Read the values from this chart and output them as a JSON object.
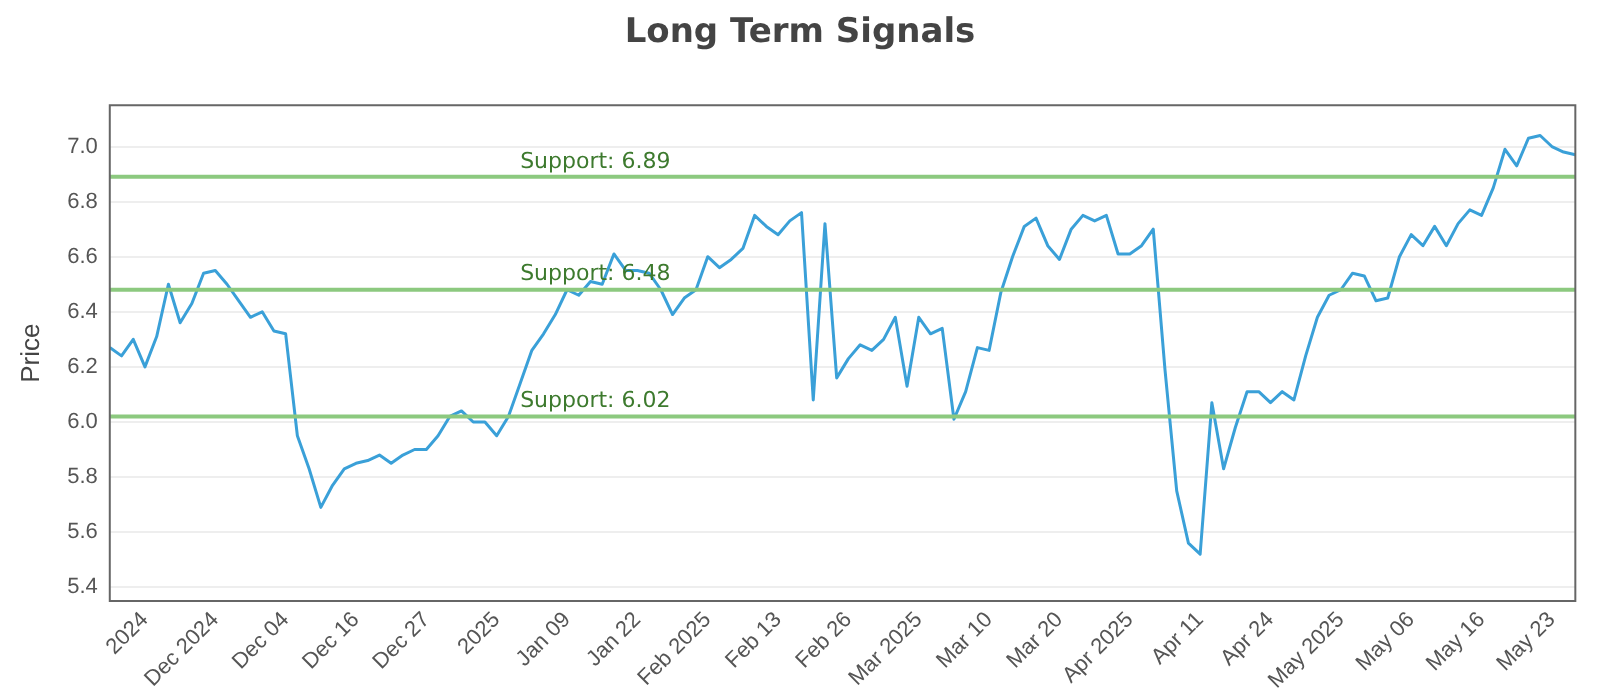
{
  "chart_data": {
    "type": "line",
    "title": "Long Term Signals",
    "ylabel": "Price",
    "categories": [
      null,
      null,
      null,
      "2024",
      null,
      null,
      null,
      null,
      null,
      "Dec 2024",
      null,
      null,
      null,
      null,
      null,
      "Dec 04",
      null,
      null,
      null,
      null,
      null,
      "Dec 16",
      null,
      null,
      null,
      null,
      null,
      "Dec 27",
      null,
      null,
      null,
      null,
      null,
      "2025",
      null,
      null,
      null,
      null,
      null,
      "Jan 09",
      null,
      null,
      null,
      null,
      null,
      "Jan 22",
      null,
      null,
      null,
      null,
      null,
      "Feb 2025",
      null,
      null,
      null,
      null,
      null,
      "Feb 13",
      null,
      null,
      null,
      null,
      null,
      "Feb 26",
      null,
      null,
      null,
      null,
      null,
      "Mar 2025",
      null,
      null,
      null,
      null,
      null,
      "Mar 10",
      null,
      null,
      null,
      null,
      null,
      "Mar 20",
      null,
      null,
      null,
      null,
      null,
      "Apr 2025",
      null,
      null,
      null,
      null,
      null,
      "Apr 11",
      null,
      null,
      null,
      null,
      null,
      "Apr 24",
      null,
      null,
      null,
      null,
      null,
      "May 2025",
      null,
      null,
      null,
      null,
      null,
      "May 06",
      null,
      null,
      null,
      null,
      null,
      "May 16",
      null,
      null,
      null,
      null,
      null,
      "May 23",
      null,
      null
    ],
    "series": [
      {
        "color": "#3aa0d8",
        "values": [
          6.27,
          6.24,
          6.3,
          6.2,
          6.31,
          6.5,
          6.36,
          6.43,
          6.54,
          6.55,
          6.5,
          6.44,
          6.38,
          6.4,
          6.33,
          6.32,
          5.95,
          5.83,
          5.69,
          5.77,
          5.83,
          5.85,
          5.86,
          5.88,
          5.85,
          5.88,
          5.9,
          5.9,
          5.95,
          6.02,
          6.04,
          6.0,
          6.0,
          5.95,
          6.02,
          6.14,
          6.26,
          6.32,
          6.39,
          6.48,
          6.46,
          6.51,
          6.5,
          6.61,
          6.55,
          6.55,
          6.54,
          6.48,
          6.39,
          6.45,
          6.48,
          6.6,
          6.56,
          6.59,
          6.63,
          6.75,
          6.71,
          6.68,
          6.73,
          6.76,
          6.08,
          6.72,
          6.16,
          6.23,
          6.28,
          6.26,
          6.3,
          6.38,
          6.13,
          6.38,
          6.32,
          6.34,
          6.01,
          6.11,
          6.27,
          6.26,
          6.47,
          6.6,
          6.71,
          6.74,
          6.64,
          6.59,
          6.7,
          6.75,
          6.73,
          6.75,
          6.61,
          6.61,
          6.64,
          6.7,
          6.19,
          5.75,
          5.56,
          5.52,
          6.07,
          5.83,
          5.98,
          6.11,
          6.11,
          6.07,
          6.11,
          6.08,
          6.24,
          6.38,
          6.46,
          6.48,
          6.54,
          6.53,
          6.44,
          6.45,
          6.6,
          6.68,
          6.64,
          6.71,
          6.64,
          6.72,
          6.77,
          6.75,
          6.85,
          6.99,
          6.93,
          7.03,
          7.04,
          7.0,
          6.98,
          6.97
        ]
      }
    ],
    "ylim": [
      5.35,
      7.15
    ],
    "yticks": [
      5.4,
      5.6,
      5.8,
      {
        "value": 6,
        "label": "6.0"
      },
      6.2,
      6.4,
      6.6,
      6.8,
      {
        "value": 7,
        "label": "7.0"
      }
    ],
    "grid": "y",
    "legend": false,
    "marker": "none",
    "line_style": "solid",
    "ref_lines": [
      {
        "axis": "y",
        "value": 6.89,
        "label": "Support: 6.89",
        "color": "#8cc97f"
      },
      {
        "axis": "y",
        "value": 6.48,
        "label": "Support: 6.48",
        "color": "#8cc97f"
      },
      {
        "axis": "y",
        "value": 6.02,
        "label": "Support: 6.02",
        "color": "#8cc97f"
      }
    ]
  }
}
